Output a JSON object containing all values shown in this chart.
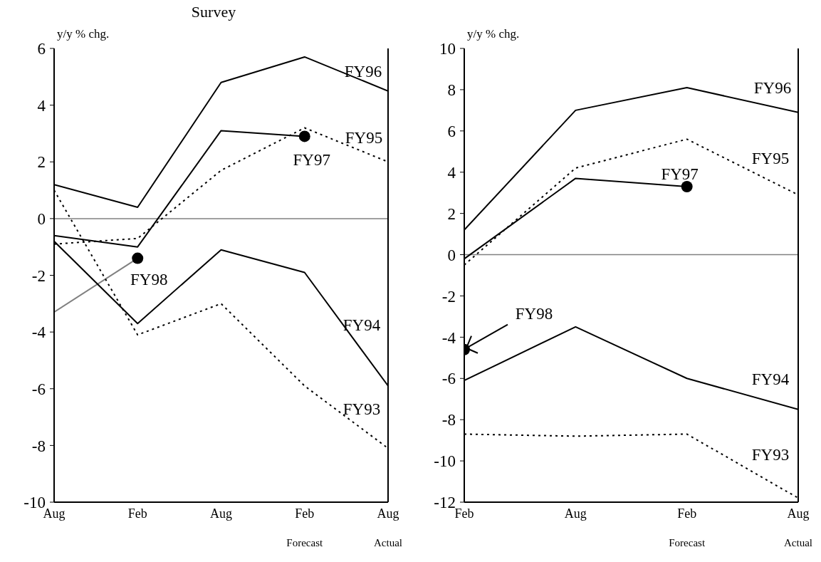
{
  "chart_data": [
    {
      "type": "line",
      "title": "Survey",
      "ylabel": "y/y % chg.",
      "categories": [
        "Aug",
        "Feb",
        "Aug",
        "Feb\nForecast",
        "Aug\nActual"
      ],
      "ylim": [
        -10,
        6
      ],
      "yticks": [
        -10,
        -8,
        -6,
        -4,
        -2,
        0,
        2,
        4,
        6
      ],
      "grid": false,
      "ref_lines": [
        {
          "axis": "y",
          "value": 0,
          "color": "#808080"
        }
      ],
      "series": [
        {
          "name": "FY96",
          "color": "#000000",
          "line_style": "solid",
          "values": [
            1.2,
            0.4,
            4.8,
            5.7,
            4.5
          ]
        },
        {
          "name": "FY95",
          "color": "#000000",
          "line_style": "dotted",
          "values": [
            -0.9,
            -0.7,
            1.7,
            3.2,
            2.0
          ]
        },
        {
          "name": "FY97",
          "color": "#000000",
          "line_style": "solid",
          "values": [
            -0.6,
            -1.0,
            3.1,
            2.9,
            null
          ]
        },
        {
          "name": "FY98",
          "color": "#808080",
          "line_style": "solid",
          "values": [
            -3.3,
            -1.4,
            null,
            null,
            null
          ]
        },
        {
          "name": "FY94",
          "color": "#000000",
          "line_style": "solid",
          "values": [
            -0.8,
            -3.7,
            -1.1,
            -1.9,
            -5.9
          ]
        },
        {
          "name": "FY93",
          "color": "#000000",
          "line_style": "dotted",
          "values": [
            1.0,
            -4.1,
            -3.0,
            -5.9,
            -8.1
          ]
        },
        {
          "type": "scatter",
          "color": "#000000",
          "marker": "circle",
          "x": [
            "Feb\nForecast",
            "Feb"
          ],
          "values": [
            2.9,
            -1.4
          ]
        }
      ]
    },
    {
      "type": "line",
      "ylabel": "y/y % chg.",
      "categories": [
        "Feb",
        "Aug",
        "Feb\nForecast",
        "Aug\nActual"
      ],
      "ylim": [
        -12,
        10
      ],
      "yticks": [
        -12,
        -10,
        -8,
        -6,
        -4,
        -2,
        0,
        2,
        4,
        6,
        8,
        10
      ],
      "grid": false,
      "ref_lines": [
        {
          "axis": "y",
          "value": 0,
          "color": "#808080"
        }
      ],
      "series": [
        {
          "name": "FY96",
          "color": "#000000",
          "line_style": "solid",
          "values": [
            1.2,
            7.0,
            8.1,
            6.9
          ]
        },
        {
          "name": "FY95",
          "color": "#000000",
          "line_style": "dotted",
          "values": [
            -0.5,
            4.2,
            5.6,
            2.9
          ]
        },
        {
          "name": "FY97",
          "color": "#000000",
          "line_style": "solid",
          "values": [
            -0.2,
            3.7,
            3.3,
            null
          ]
        },
        {
          "name": "FY98",
          "type": "scatter",
          "color": "#000000",
          "marker": "circle",
          "x": [
            "Feb"
          ],
          "values": [
            -4.6
          ]
        },
        {
          "name": "FY94",
          "color": "#000000",
          "line_style": "solid",
          "values": [
            -6.1,
            -3.5,
            -6.0,
            -7.5
          ]
        },
        {
          "name": "FY93",
          "color": "#000000",
          "line_style": "dotted",
          "values": [
            -8.7,
            -8.8,
            -8.7,
            -11.8
          ]
        },
        {
          "type": "scatter",
          "color": "#000000",
          "marker": "circle",
          "x": [
            "Feb\nForecast"
          ],
          "values": [
            3.3
          ]
        }
      ]
    }
  ]
}
